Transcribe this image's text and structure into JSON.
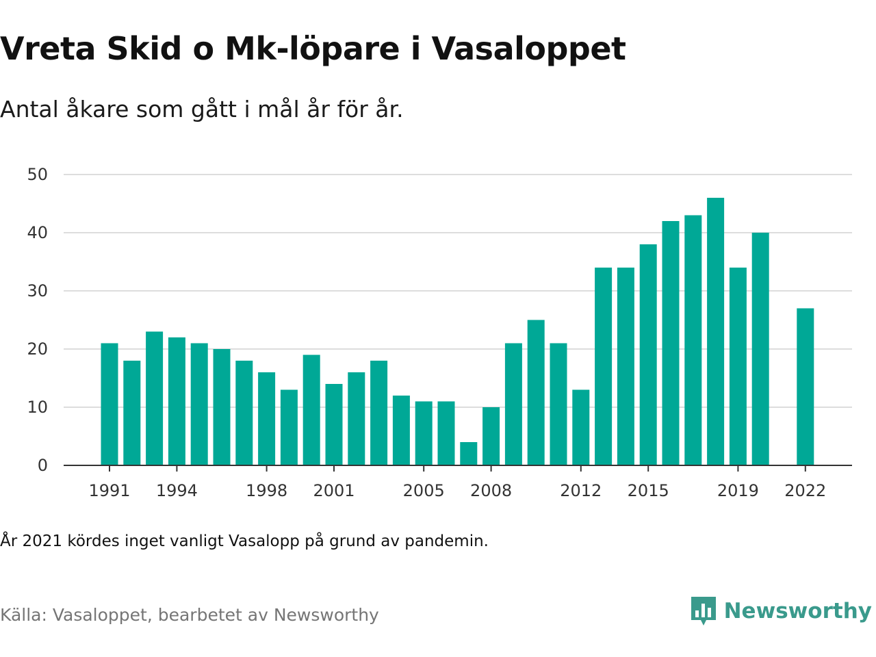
{
  "header": {
    "title": "Vreta Skid o Mk-löpare i Vasaloppet",
    "subtitle": "Antal åkare som gått i mål år för år."
  },
  "footer": {
    "note": "År 2021 kördes inget vanligt Vasalopp på grund av pandemin.",
    "source": "Källa: Vasaloppet, bearbetet av Newsworthy",
    "brand": "Newsworthy",
    "brand_icon": "newsworthy-logo-icon"
  },
  "colors": {
    "bar": "#00a896",
    "grid": "#dddddd",
    "axis": "#333333",
    "brand": "#3a9a8c"
  },
  "chart_data": {
    "type": "bar",
    "categories": [
      "1991",
      "1992",
      "1993",
      "1994",
      "1995",
      "1996",
      "1997",
      "1998",
      "1999",
      "2000",
      "2001",
      "2002",
      "2003",
      "2004",
      "2005",
      "2006",
      "2007",
      "2008",
      "2009",
      "2010",
      "2011",
      "2012",
      "2013",
      "2014",
      "2015",
      "2016",
      "2017",
      "2018",
      "2019",
      "2020",
      "2021",
      "2022"
    ],
    "values": [
      21,
      18,
      23,
      22,
      21,
      20,
      18,
      16,
      13,
      19,
      14,
      16,
      18,
      12,
      11,
      11,
      4,
      10,
      21,
      25,
      21,
      13,
      34,
      34,
      38,
      42,
      43,
      46,
      34,
      40,
      null,
      27
    ],
    "x_tick_labels": [
      "1991",
      "1994",
      "1998",
      "2001",
      "2005",
      "2008",
      "2012",
      "2015",
      "2019",
      "2022"
    ],
    "y_ticks": [
      0,
      10,
      20,
      30,
      40,
      50
    ],
    "ylim": [
      0,
      50
    ],
    "title": "Vreta Skid o Mk-löpare i Vasaloppet",
    "xlabel": "",
    "ylabel": "",
    "grid": true
  }
}
